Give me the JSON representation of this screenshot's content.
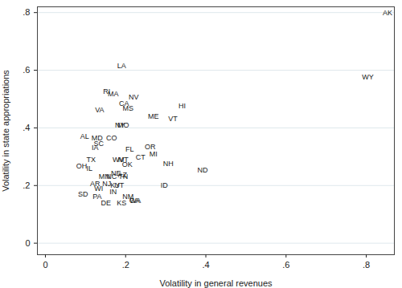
{
  "chart_data": {
    "type": "scatter",
    "x_label": "Volatility in general revenues",
    "y_label": "Volatility in state appropriations",
    "labels": [
      "AK",
      "WY",
      "LA",
      "RI",
      "MA",
      "NV",
      "CA",
      "MS",
      "VA",
      "HI",
      "ME",
      "NY",
      "MO",
      "VT",
      "AL",
      "MD",
      "CO",
      "SC",
      "IA",
      "OR",
      "FL",
      "MI",
      "TX",
      "CT",
      "WV",
      "MT",
      "NH",
      "ND",
      "OK",
      "OH",
      "IL",
      "NE",
      "AZ",
      "MN",
      "NC",
      "TN",
      "AR",
      "NJ",
      "KY",
      "UT",
      "ID",
      "WI",
      "IN",
      "SD",
      "PA",
      "NM",
      "GA",
      "WA",
      "DE",
      "KS"
    ],
    "x": [
      0.853,
      0.804,
      0.19,
      0.153,
      0.169,
      0.22,
      0.196,
      0.206,
      0.135,
      0.341,
      0.269,
      0.186,
      0.194,
      0.318,
      0.098,
      0.129,
      0.165,
      0.133,
      0.124,
      0.261,
      0.21,
      0.269,
      0.114,
      0.237,
      0.182,
      0.194,
      0.306,
      0.392,
      0.204,
      0.09,
      0.11,
      0.176,
      0.192,
      0.147,
      0.165,
      0.194,
      0.124,
      0.153,
      0.174,
      0.184,
      0.296,
      0.133,
      0.169,
      0.094,
      0.129,
      0.206,
      0.222,
      0.224,
      0.151,
      0.19
    ],
    "y": [
      0.8,
      0.577,
      0.616,
      0.525,
      0.517,
      0.506,
      0.484,
      0.468,
      0.462,
      0.476,
      0.44,
      0.41,
      0.41,
      0.432,
      0.369,
      0.364,
      0.364,
      0.345,
      0.331,
      0.334,
      0.326,
      0.309,
      0.29,
      0.298,
      0.29,
      0.29,
      0.276,
      0.254,
      0.274,
      0.268,
      0.26,
      0.241,
      0.238,
      0.23,
      0.23,
      0.23,
      0.205,
      0.205,
      0.2,
      0.2,
      0.2,
      0.189,
      0.178,
      0.17,
      0.161,
      0.161,
      0.148,
      0.148,
      0.14,
      0.14
    ],
    "xlim": [
      -0.02,
      0.87
    ],
    "ylim": [
      -0.04,
      0.82
    ],
    "xticks": [
      0,
      {
        "value": 0.2,
        "label": ".2"
      },
      {
        "value": 0.4,
        "label": ".4"
      },
      {
        "value": 0.6,
        "label": ".6"
      },
      {
        "value": 0.8,
        "label": ".8"
      }
    ],
    "yticks": [
      0,
      {
        "value": 0.2,
        "label": ".2"
      },
      {
        "value": 0.4,
        "label": ".4"
      },
      {
        "value": 0.6,
        "label": ".6"
      },
      {
        "value": 0.8,
        "label": ".8"
      }
    ],
    "grid": true,
    "color": "#1a1a1a"
  }
}
